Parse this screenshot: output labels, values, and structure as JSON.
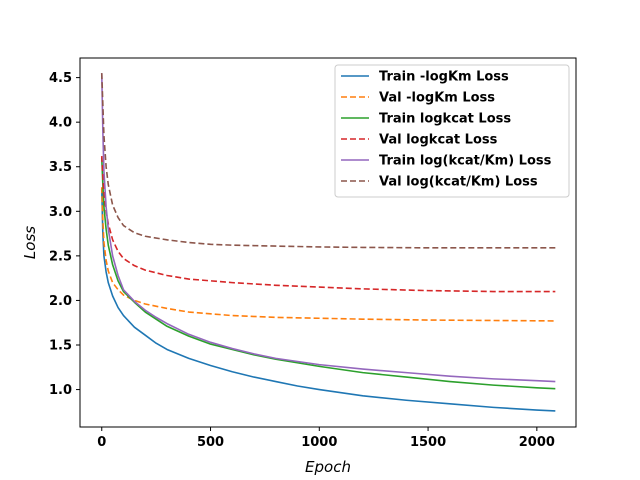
{
  "chart_data": {
    "type": "line",
    "title": "",
    "xlabel": "Epoch",
    "ylabel": "Loss",
    "xlim": [
      -100,
      2180
    ],
    "ylim": [
      0.58,
      4.72
    ],
    "xticks": [
      0,
      500,
      1000,
      1500,
      2000
    ],
    "yticks": [
      1.0,
      1.5,
      2.0,
      2.5,
      3.0,
      3.5,
      4.0,
      4.5
    ],
    "xtick_labels": [
      "0",
      "500",
      "1000",
      "1500",
      "2000"
    ],
    "ytick_labels": [
      "1.0",
      "1.5",
      "2.0",
      "2.5",
      "3.0",
      "3.5",
      "4.0",
      "4.5"
    ],
    "grid": false,
    "legend_position": "top-right",
    "series": [
      {
        "name": "Train -logKm Loss",
        "color": "#1f77b4",
        "dash": "solid",
        "points": [
          [
            0,
            3.25
          ],
          [
            5,
            2.75
          ],
          [
            10,
            2.5
          ],
          [
            20,
            2.32
          ],
          [
            30,
            2.2
          ],
          [
            50,
            2.05
          ],
          [
            75,
            1.92
          ],
          [
            100,
            1.83
          ],
          [
            150,
            1.7
          ],
          [
            200,
            1.61
          ],
          [
            250,
            1.52
          ],
          [
            300,
            1.45
          ],
          [
            400,
            1.35
          ],
          [
            500,
            1.27
          ],
          [
            600,
            1.2
          ],
          [
            700,
            1.14
          ],
          [
            800,
            1.09
          ],
          [
            900,
            1.04
          ],
          [
            1000,
            1.0
          ],
          [
            1200,
            0.93
          ],
          [
            1400,
            0.88
          ],
          [
            1600,
            0.84
          ],
          [
            1800,
            0.8
          ],
          [
            2000,
            0.77
          ],
          [
            2085,
            0.76
          ]
        ]
      },
      {
        "name": "Val -logKm Loss",
        "color": "#ff7f0e",
        "dash": "dashed",
        "points": [
          [
            0,
            3.27
          ],
          [
            5,
            2.9
          ],
          [
            10,
            2.65
          ],
          [
            20,
            2.45
          ],
          [
            30,
            2.33
          ],
          [
            50,
            2.2
          ],
          [
            75,
            2.12
          ],
          [
            100,
            2.06
          ],
          [
            150,
            2.0
          ],
          [
            200,
            1.96
          ],
          [
            300,
            1.91
          ],
          [
            400,
            1.87
          ],
          [
            500,
            1.85
          ],
          [
            600,
            1.83
          ],
          [
            800,
            1.81
          ],
          [
            1000,
            1.8
          ],
          [
            1200,
            1.79
          ],
          [
            1500,
            1.78
          ],
          [
            1800,
            1.775
          ],
          [
            2085,
            1.77
          ]
        ]
      },
      {
        "name": "Train logkcat Loss",
        "color": "#2ca02c",
        "dash": "solid",
        "points": [
          [
            0,
            3.6
          ],
          [
            5,
            3.3
          ],
          [
            10,
            3.05
          ],
          [
            20,
            2.8
          ],
          [
            30,
            2.62
          ],
          [
            50,
            2.4
          ],
          [
            75,
            2.22
          ],
          [
            100,
            2.1
          ],
          [
            150,
            1.98
          ],
          [
            200,
            1.87
          ],
          [
            250,
            1.79
          ],
          [
            300,
            1.71
          ],
          [
            400,
            1.6
          ],
          [
            500,
            1.51
          ],
          [
            600,
            1.45
          ],
          [
            700,
            1.39
          ],
          [
            800,
            1.34
          ],
          [
            1000,
            1.26
          ],
          [
            1200,
            1.19
          ],
          [
            1400,
            1.14
          ],
          [
            1600,
            1.09
          ],
          [
            1800,
            1.05
          ],
          [
            2000,
            1.02
          ],
          [
            2085,
            1.01
          ]
        ]
      },
      {
        "name": "Val logkcat Loss",
        "color": "#d62728",
        "dash": "dashed",
        "points": [
          [
            0,
            3.62
          ],
          [
            5,
            3.4
          ],
          [
            10,
            3.2
          ],
          [
            20,
            3.0
          ],
          [
            30,
            2.86
          ],
          [
            50,
            2.68
          ],
          [
            75,
            2.55
          ],
          [
            100,
            2.47
          ],
          [
            150,
            2.39
          ],
          [
            200,
            2.34
          ],
          [
            300,
            2.28
          ],
          [
            400,
            2.24
          ],
          [
            500,
            2.22
          ],
          [
            600,
            2.2
          ],
          [
            800,
            2.17
          ],
          [
            1000,
            2.15
          ],
          [
            1200,
            2.13
          ],
          [
            1500,
            2.11
          ],
          [
            1800,
            2.1
          ],
          [
            2085,
            2.1
          ]
        ]
      },
      {
        "name": "Train log(kcat/Km) Loss",
        "color": "#9467bd",
        "dash": "solid",
        "points": [
          [
            0,
            4.55
          ],
          [
            5,
            3.9
          ],
          [
            10,
            3.45
          ],
          [
            20,
            3.05
          ],
          [
            30,
            2.8
          ],
          [
            50,
            2.5
          ],
          [
            75,
            2.28
          ],
          [
            100,
            2.12
          ],
          [
            150,
            1.99
          ],
          [
            200,
            1.89
          ],
          [
            250,
            1.81
          ],
          [
            300,
            1.74
          ],
          [
            400,
            1.62
          ],
          [
            500,
            1.53
          ],
          [
            600,
            1.46
          ],
          [
            700,
            1.4
          ],
          [
            800,
            1.35
          ],
          [
            1000,
            1.28
          ],
          [
            1200,
            1.23
          ],
          [
            1400,
            1.19
          ],
          [
            1600,
            1.15
          ],
          [
            1800,
            1.12
          ],
          [
            2000,
            1.1
          ],
          [
            2085,
            1.09
          ]
        ]
      },
      {
        "name": "Val log(kcat/Km) Loss",
        "color": "#8c564b",
        "dash": "dashed",
        "points": [
          [
            0,
            4.55
          ],
          [
            5,
            4.2
          ],
          [
            10,
            3.85
          ],
          [
            20,
            3.5
          ],
          [
            30,
            3.3
          ],
          [
            50,
            3.07
          ],
          [
            75,
            2.93
          ],
          [
            100,
            2.84
          ],
          [
            150,
            2.76
          ],
          [
            200,
            2.72
          ],
          [
            300,
            2.68
          ],
          [
            400,
            2.65
          ],
          [
            500,
            2.63
          ],
          [
            600,
            2.62
          ],
          [
            800,
            2.61
          ],
          [
            1000,
            2.6
          ],
          [
            1200,
            2.595
          ],
          [
            1500,
            2.59
          ],
          [
            1800,
            2.59
          ],
          [
            2085,
            2.59
          ]
        ]
      }
    ]
  }
}
